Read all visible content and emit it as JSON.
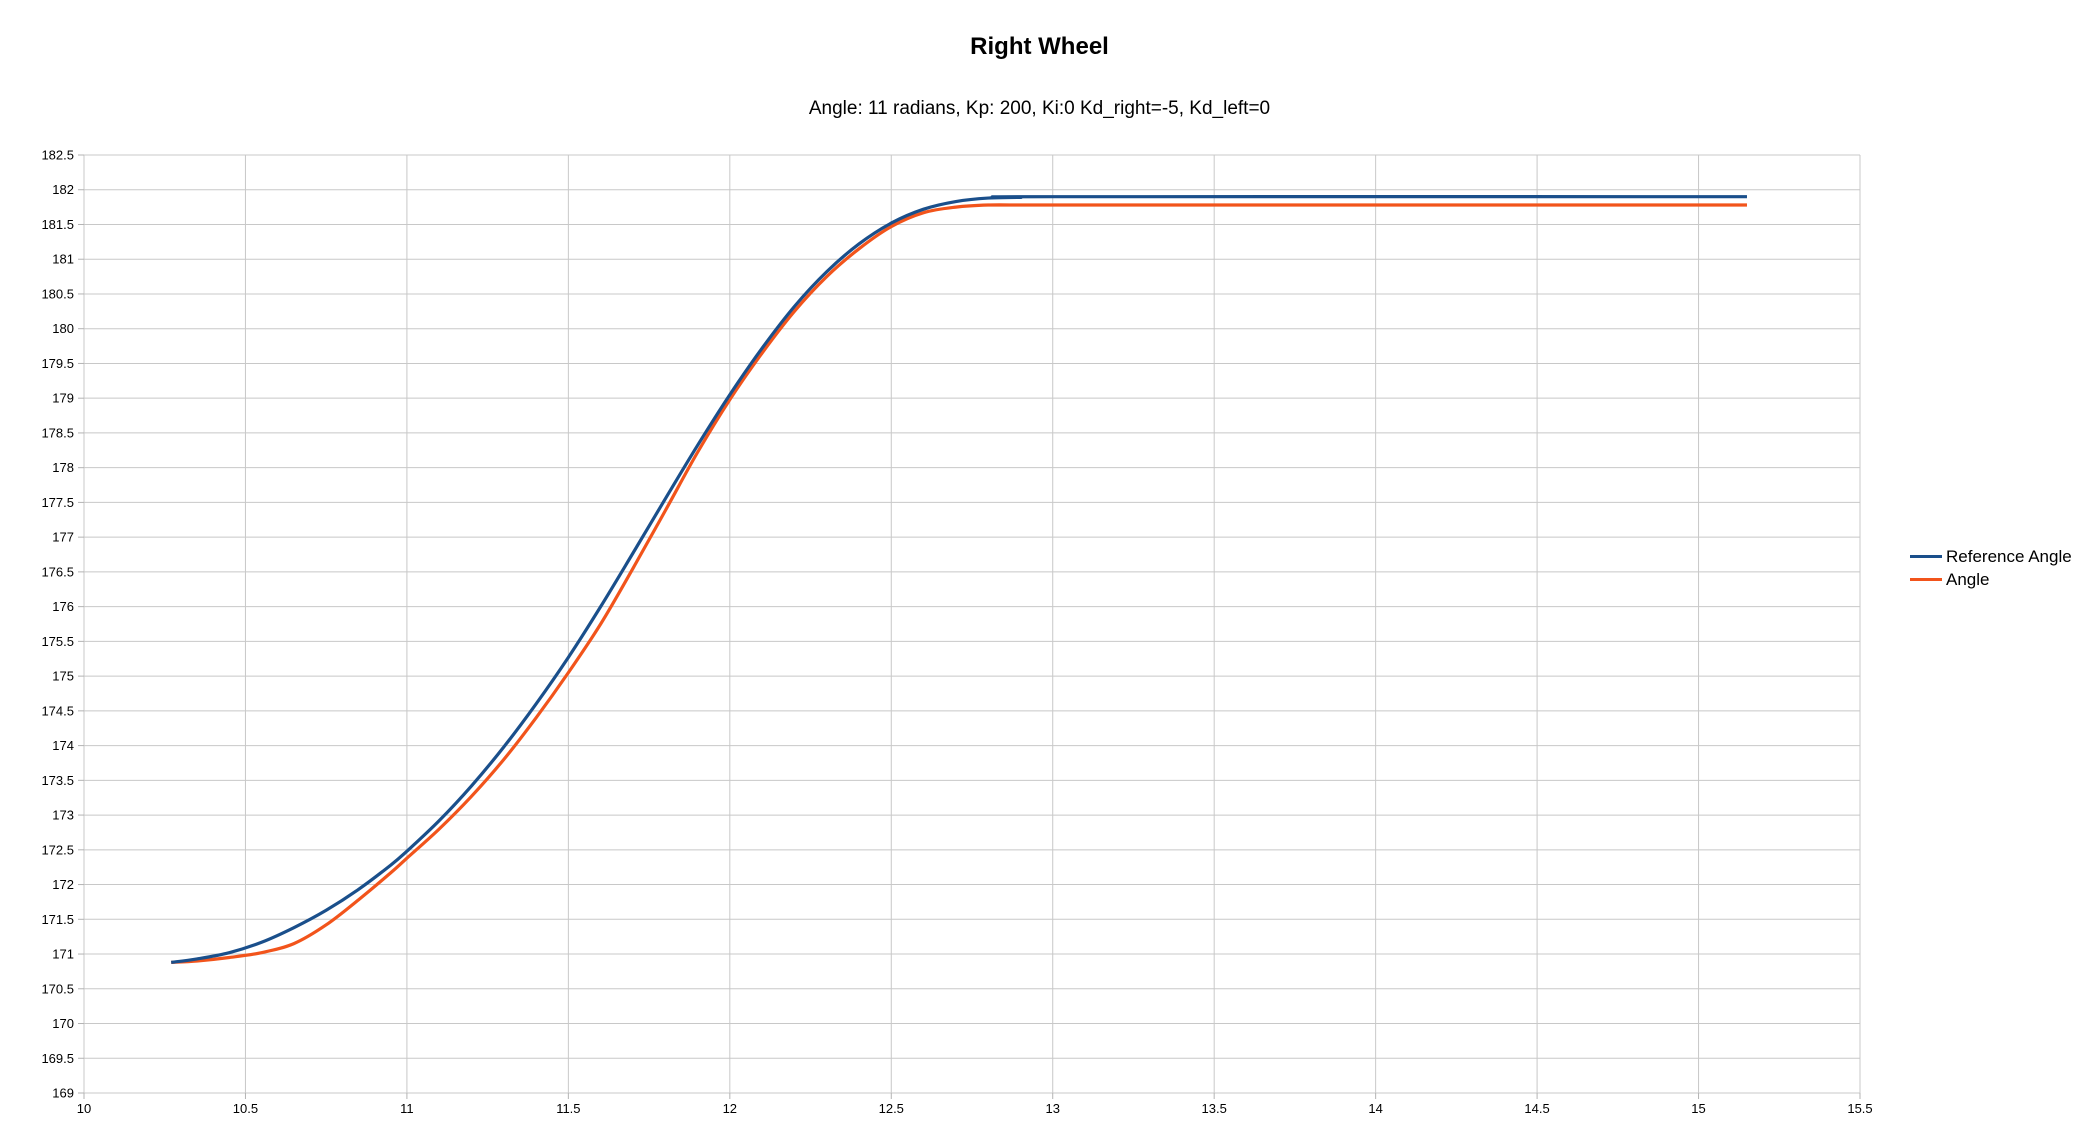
{
  "chart_data": {
    "type": "line",
    "title": "Right Wheel",
    "subtitle": "Angle: 11 radians, Kp: 200, Ki:0 Kd_right=-5, Kd_left=0",
    "xlabel": "",
    "ylabel": "",
    "xlim": [
      10,
      15.5
    ],
    "ylim": [
      169,
      182.5
    ],
    "x_ticks": [
      "10",
      "10.5",
      "11",
      "11.5",
      "12",
      "12.5",
      "13",
      "13.5",
      "14",
      "14.5",
      "15",
      "15.5"
    ],
    "y_ticks": [
      "169",
      "169.5",
      "170",
      "170.5",
      "171",
      "171.5",
      "172",
      "172.5",
      "173",
      "173.5",
      "174",
      "174.5",
      "175",
      "175.5",
      "176",
      "176.5",
      "177",
      "177.5",
      "178",
      "178.5",
      "179",
      "179.5",
      "180",
      "180.5",
      "181",
      "181.5",
      "182",
      "182.5"
    ],
    "grid": true,
    "legend_position": "right",
    "series": [
      {
        "name": "Reference Angle",
        "color": "#1a4f8b",
        "points": [
          [
            10.27,
            170.88
          ],
          [
            10.35,
            170.93
          ],
          [
            10.45,
            171.02
          ],
          [
            10.55,
            171.17
          ],
          [
            10.65,
            171.38
          ],
          [
            10.75,
            171.63
          ],
          [
            10.85,
            171.93
          ],
          [
            10.95,
            172.28
          ],
          [
            11.0,
            172.48
          ],
          [
            11.1,
            172.92
          ],
          [
            11.2,
            173.42
          ],
          [
            11.3,
            173.98
          ],
          [
            11.4,
            174.6
          ],
          [
            11.5,
            175.27
          ],
          [
            11.6,
            176.0
          ],
          [
            11.7,
            176.77
          ],
          [
            11.8,
            177.55
          ],
          [
            11.9,
            178.32
          ],
          [
            12.0,
            179.05
          ],
          [
            12.1,
            179.72
          ],
          [
            12.2,
            180.32
          ],
          [
            12.3,
            180.82
          ],
          [
            12.4,
            181.22
          ],
          [
            12.5,
            181.52
          ],
          [
            12.6,
            181.72
          ],
          [
            12.7,
            181.83
          ],
          [
            12.8,
            181.88
          ],
          [
            12.9,
            181.89
          ],
          [
            13.0,
            181.9
          ],
          [
            15.15,
            181.9
          ]
        ]
      },
      {
        "name": "Angle",
        "color": "#f2541b",
        "points": [
          [
            10.27,
            170.88
          ],
          [
            10.35,
            170.9
          ],
          [
            10.45,
            170.95
          ],
          [
            10.55,
            171.02
          ],
          [
            10.65,
            171.15
          ],
          [
            10.75,
            171.42
          ],
          [
            10.85,
            171.78
          ],
          [
            10.95,
            172.17
          ],
          [
            11.0,
            172.38
          ],
          [
            11.1,
            172.8
          ],
          [
            11.2,
            173.27
          ],
          [
            11.3,
            173.8
          ],
          [
            11.4,
            174.4
          ],
          [
            11.5,
            175.05
          ],
          [
            11.6,
            175.75
          ],
          [
            11.7,
            176.55
          ],
          [
            11.8,
            177.38
          ],
          [
            11.9,
            178.22
          ],
          [
            12.0,
            178.98
          ],
          [
            12.1,
            179.65
          ],
          [
            12.2,
            180.25
          ],
          [
            12.3,
            180.75
          ],
          [
            12.4,
            181.15
          ],
          [
            12.5,
            181.47
          ],
          [
            12.6,
            181.67
          ],
          [
            12.7,
            181.75
          ],
          [
            12.8,
            181.78
          ],
          [
            12.9,
            181.78
          ],
          [
            13.0,
            181.78
          ],
          [
            15.15,
            181.78
          ]
        ]
      }
    ]
  }
}
